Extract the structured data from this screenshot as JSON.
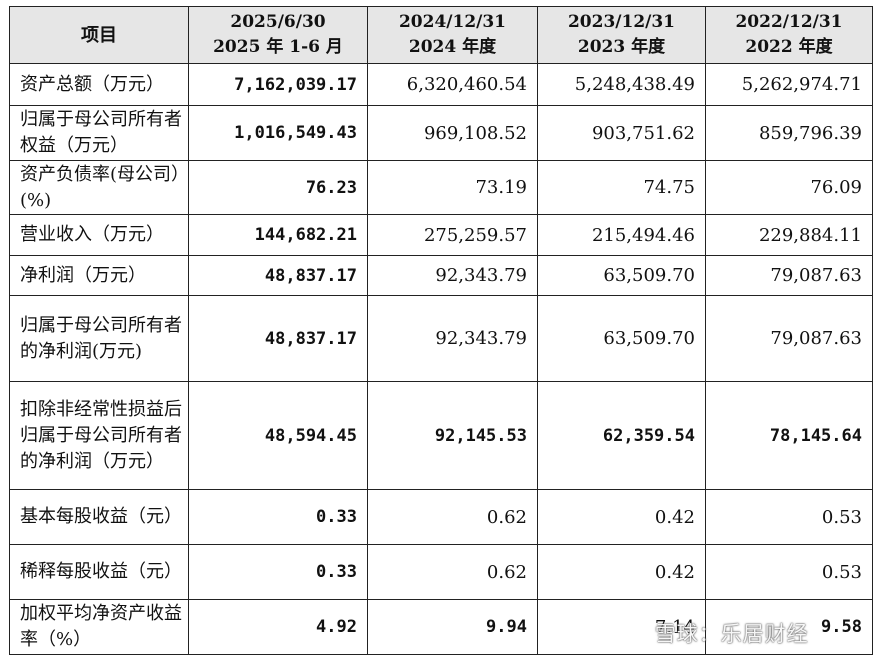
{
  "table": {
    "header": {
      "item": "项目",
      "col1_line1": "2025/6/30",
      "col1_line2": "2025 年 1-6 月",
      "col2_line1": "2024/12/31",
      "col2_line2": "2024 年度",
      "col3_line1": "2023/12/31",
      "col3_line2": "2023 年度",
      "col4_line1": "2022/12/31",
      "col4_line2": "2022 年度"
    },
    "rows": [
      {
        "label": "资产总额（万元）",
        "v1": "7,162,039.17",
        "v2": "6,320,460.54",
        "v3": "5,248,438.49",
        "v4": "5,262,974.71"
      },
      {
        "label": "归属于母公司所有者权益（万元）",
        "v1": "1,016,549.43",
        "v2": "969,108.52",
        "v3": "903,751.62",
        "v4": "859,796.39"
      },
      {
        "label": "资产负债率(母公司）(%)",
        "v1": "76.23",
        "v2": "73.19",
        "v3": "74.75",
        "v4": "76.09"
      },
      {
        "label": "营业收入（万元）",
        "v1": "144,682.21",
        "v2": "275,259.57",
        "v3": "215,494.46",
        "v4": "229,884.11"
      },
      {
        "label": "净利润（万元）",
        "v1": "48,837.17",
        "v2": "92,343.79",
        "v3": "63,509.70",
        "v4": "79,087.63"
      },
      {
        "label": "归属于母公司所有者的净利润(万元)",
        "v1": "48,837.17",
        "v2": "92,343.79",
        "v3": "63,509.70",
        "v4": "79,087.63"
      },
      {
        "label": "扣除非经常性损益后归属于母公司所有者的净利润（万元）",
        "v1": "48,594.45",
        "v2": "92,145.53",
        "v3": "62,359.54",
        "v4": "78,145.64"
      },
      {
        "label": "基本每股收益（元）",
        "v1": "0.33",
        "v2": "0.62",
        "v3": "0.42",
        "v4": "0.53"
      },
      {
        "label": "稀释每股收益（元）",
        "v1": "0.33",
        "v2": "0.62",
        "v3": "0.42",
        "v4": "0.53"
      },
      {
        "label": "加权平均净资产收益率（%）",
        "v1": "4.92",
        "v2": "9.94",
        "v3": "7.14",
        "v4": "9.58"
      }
    ]
  },
  "watermark": {
    "text": "雪球：乐居财经",
    "icon": "snowball-logo-icon"
  }
}
